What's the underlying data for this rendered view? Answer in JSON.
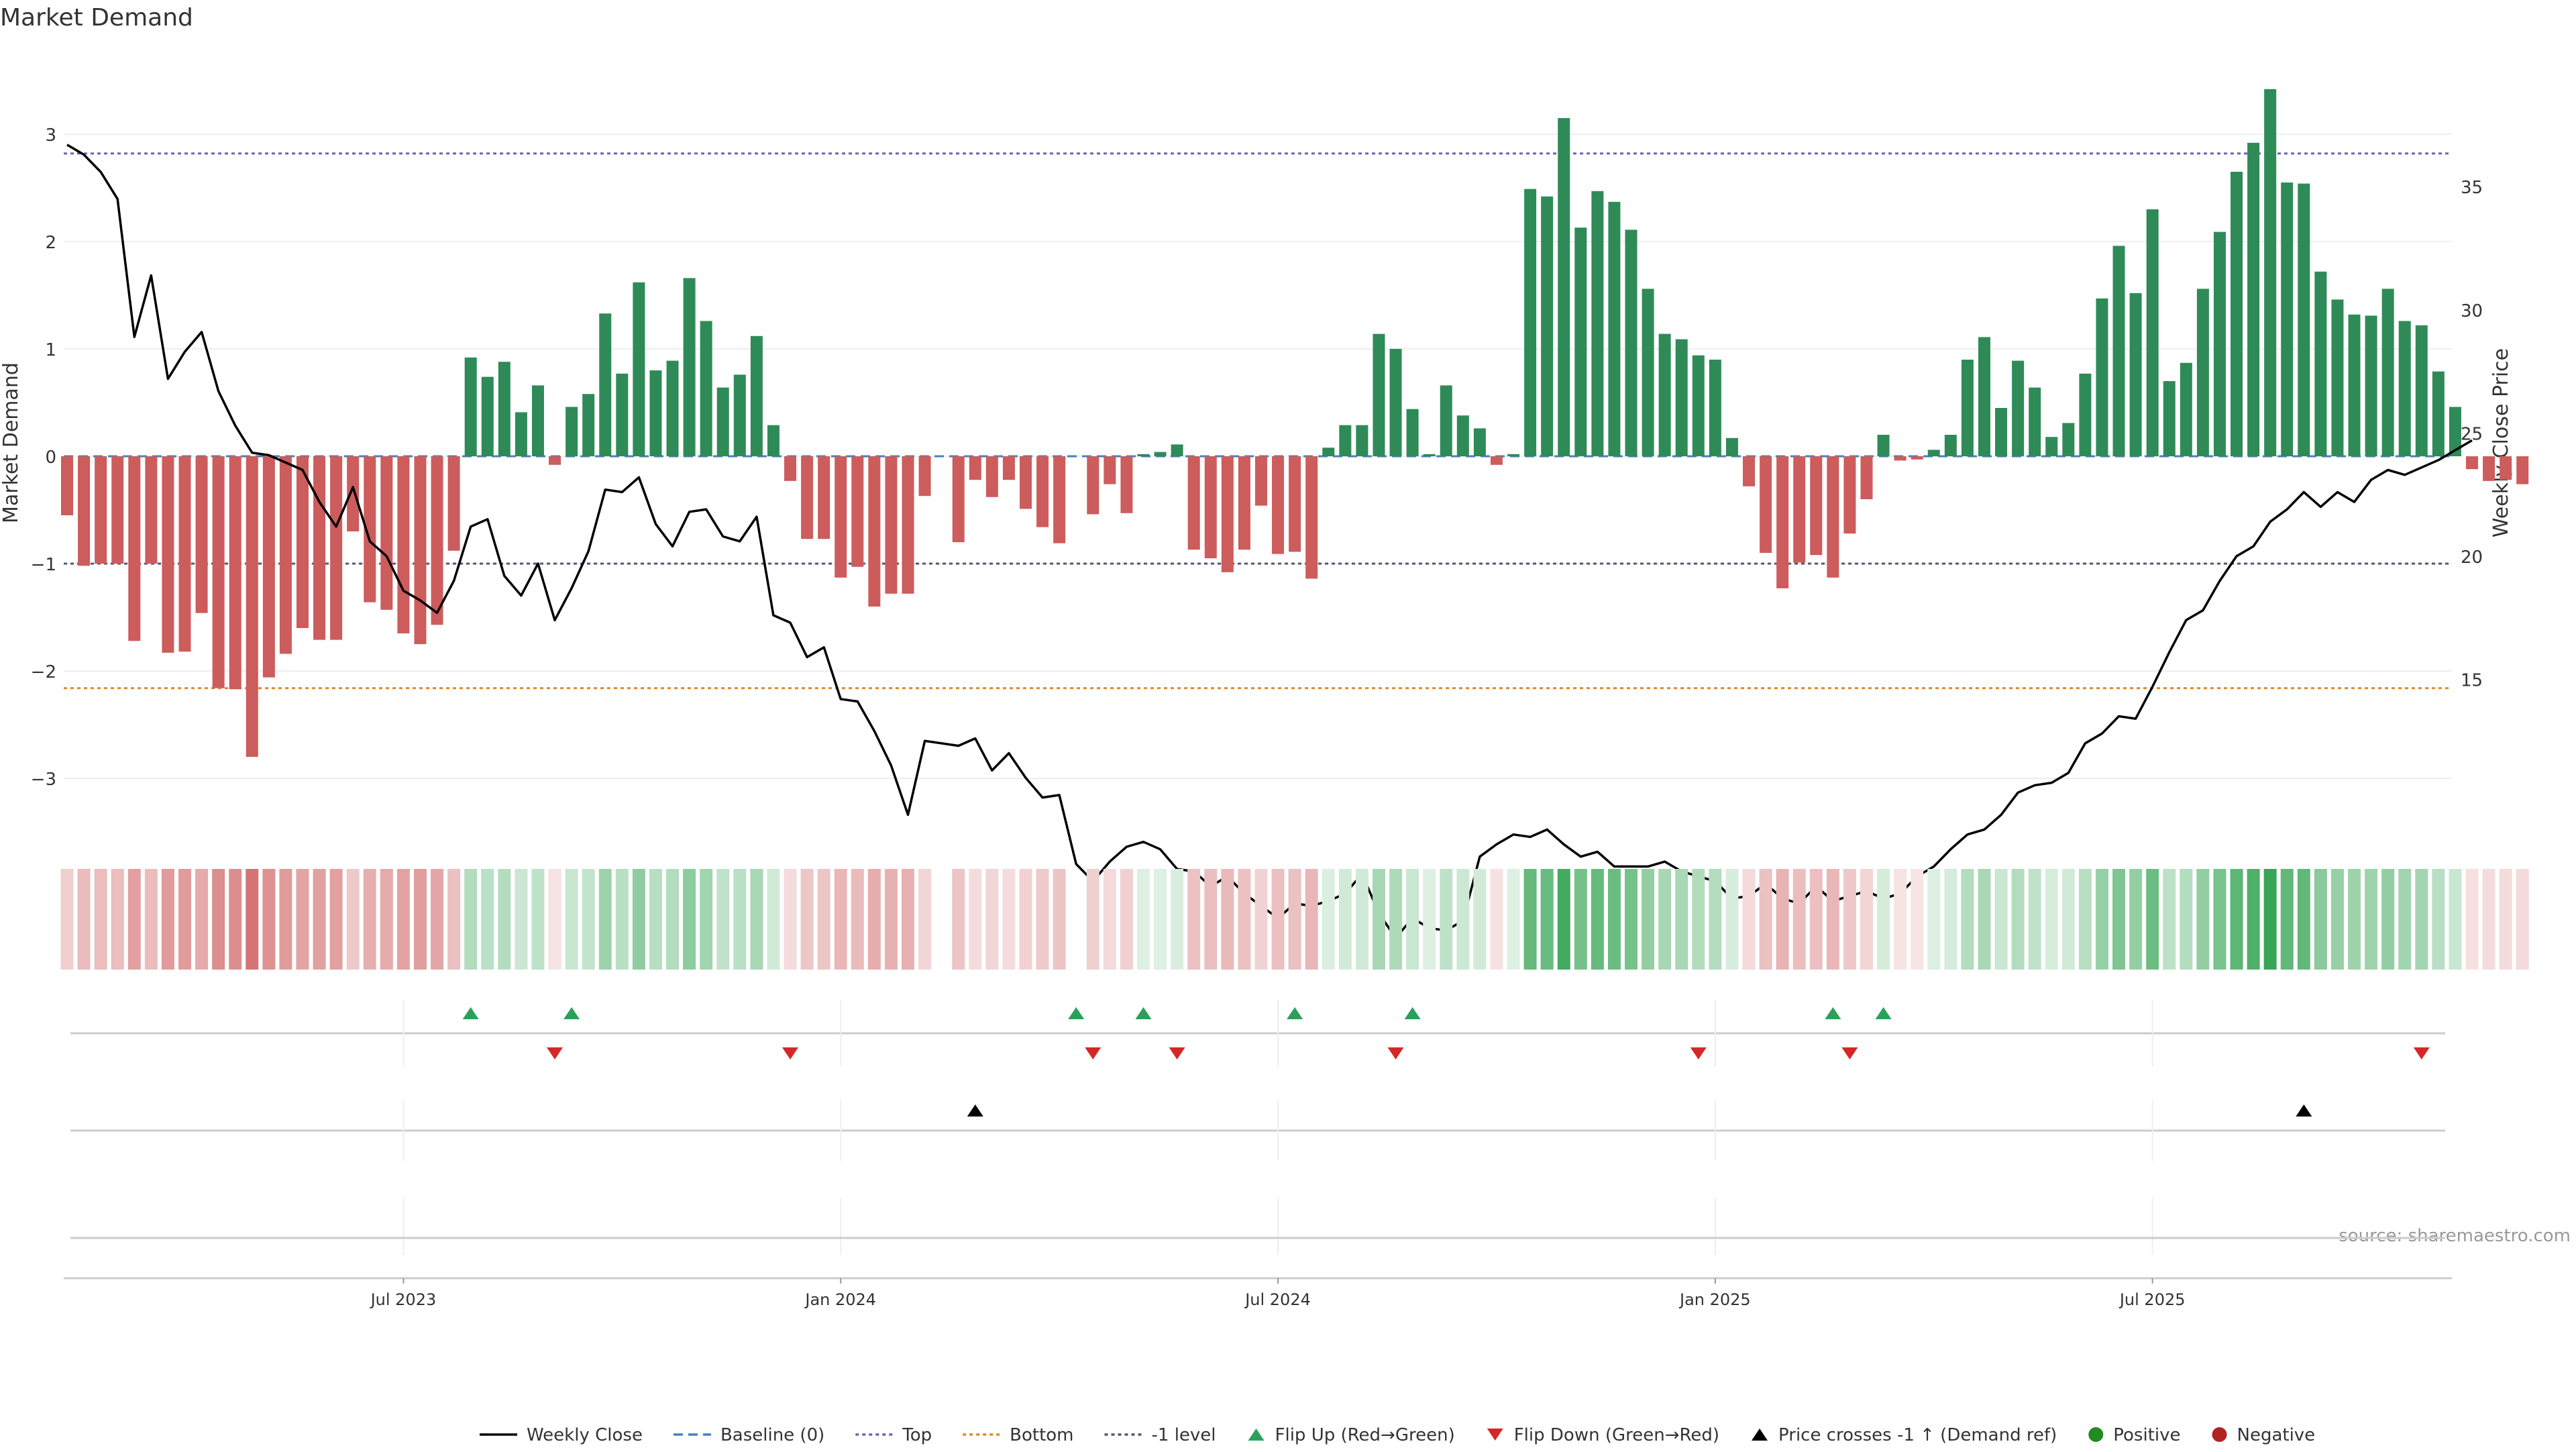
{
  "chart_data": {
    "type": "bar",
    "title": "Market Demand",
    "ylabel_left": "Market Demand",
    "ylabel_right": "Weekly Close Price",
    "source": "source: sharemaestro.com",
    "ylim_left": [
      -3.5,
      3.75
    ],
    "ylim_right": [
      8.8,
      40.4
    ],
    "yticks_left": [
      {
        "value": 3,
        "label": "3"
      },
      {
        "value": 2,
        "label": "2"
      },
      {
        "value": 1,
        "label": "1"
      },
      {
        "value": 0,
        "label": "0"
      },
      {
        "value": -1,
        "label": "−1"
      },
      {
        "value": -2,
        "label": "−2"
      },
      {
        "value": -3,
        "label": "−3"
      }
    ],
    "yticks_right": [
      {
        "value": 35,
        "label": "35"
      },
      {
        "value": 30,
        "label": "30"
      },
      {
        "value": 25,
        "label": "25"
      },
      {
        "value": 20,
        "label": "20"
      },
      {
        "value": 15,
        "label": "15"
      }
    ],
    "xticks": [
      {
        "week": 20,
        "label": "Jul 2023"
      },
      {
        "week": 46,
        "label": "Jan 2024"
      },
      {
        "week": 72,
        "label": "Jul 2024"
      },
      {
        "week": 98,
        "label": "Jan 2025"
      },
      {
        "week": 124,
        "label": "Jul 2025"
      }
    ],
    "reference_lines": {
      "baseline": 0,
      "top": 2.82,
      "bottom": -2.16,
      "minus_one": -1
    },
    "colors": {
      "positive": "#2e8b57",
      "negative": "#cd5c5c",
      "price": "#000000",
      "baseline": "#4a7fc1",
      "top": "#6a63b5",
      "bottom": "#e08a2c",
      "minus_one": "#555577",
      "flip_up": "#2ca05a",
      "flip_down": "#d62728",
      "cross": "#000000",
      "legend_positive": "#228b22",
      "legend_negative": "#b22222"
    },
    "demand": [
      -0.55,
      -1.02,
      -1.0,
      -1.0,
      -1.72,
      -1.0,
      -1.83,
      -1.82,
      -1.46,
      -2.16,
      -2.17,
      -2.8,
      -2.06,
      -1.84,
      -1.6,
      -1.71,
      -1.71,
      -0.7,
      -1.36,
      -1.43,
      -1.65,
      -1.75,
      -1.57,
      -0.88,
      0.92,
      0.74,
      0.88,
      0.41,
      0.66,
      -0.08,
      0.46,
      0.58,
      1.33,
      0.77,
      1.62,
      0.8,
      0.89,
      1.66,
      1.26,
      0.64,
      0.76,
      1.12,
      0.29,
      -0.23,
      -0.77,
      -0.77,
      -1.13,
      -1.03,
      -1.4,
      -1.28,
      -1.28,
      -0.37,
      null,
      -0.8,
      -0.22,
      -0.38,
      -0.22,
      -0.49,
      -0.66,
      -0.81,
      null,
      -0.54,
      -0.26,
      -0.53,
      0.02,
      0.04,
      0.11,
      -0.87,
      -0.95,
      -1.08,
      -0.87,
      -0.46,
      -0.91,
      -0.89,
      -1.14,
      0.08,
      0.29,
      0.29,
      1.14,
      1.0,
      0.44,
      0.02,
      0.66,
      0.38,
      0.26,
      -0.08,
      0.02,
      2.49,
      2.42,
      3.15,
      2.13,
      2.47,
      2.37,
      2.11,
      1.56,
      1.14,
      1.09,
      0.94,
      0.9,
      0.17,
      -0.28,
      -0.9,
      -1.23,
      -0.99,
      -0.92,
      -1.13,
      -0.72,
      -0.4,
      0.2,
      -0.04,
      -0.03,
      0.06,
      0.2,
      0.9,
      1.11,
      0.45,
      0.89,
      0.64,
      0.18,
      0.31,
      0.77,
      1.47,
      1.96,
      1.52,
      2.3,
      0.7,
      0.87,
      1.56,
      2.09,
      2.65,
      2.92,
      3.42,
      2.55,
      2.54,
      1.72,
      1.46,
      1.32,
      1.31,
      1.56,
      1.26,
      1.22,
      0.79,
      0.46,
      -0.12,
      -0.23,
      -0.22,
      -0.26
    ],
    "price": [
      36.7,
      36.3,
      35.6,
      34.5,
      28.9,
      31.4,
      27.2,
      28.3,
      29.1,
      26.7,
      25.3,
      24.2,
      24.1,
      23.8,
      23.5,
      22.2,
      21.2,
      22.8,
      20.6,
      20.0,
      18.6,
      18.2,
      17.7,
      19.0,
      21.2,
      21.5,
      19.2,
      18.4,
      19.7,
      17.4,
      18.7,
      20.2,
      22.7,
      22.6,
      23.2,
      21.3,
      20.4,
      21.8,
      21.9,
      20.8,
      20.6,
      21.6,
      17.6,
      17.3,
      15.9,
      16.3,
      14.2,
      14.1,
      12.9,
      11.5,
      9.5,
      12.5,
      12.4,
      12.3,
      12.6,
      11.3,
      12.0,
      11.0,
      10.2,
      10.3,
      7.5,
      6.8,
      7.6,
      8.2,
      8.4,
      8.1,
      7.3,
      7.2,
      6.6,
      7.0,
      6.3,
      5.8,
      5.3,
      5.9,
      5.8,
      6.0,
      6.3,
      7.1,
      5.5,
      4.5,
      5.3,
      4.9,
      4.8,
      5.2,
      7.8,
      8.3,
      8.7,
      8.6,
      8.9,
      8.3,
      7.8,
      8.0,
      7.4,
      7.4,
      7.4,
      7.6,
      7.2,
      7.0,
      6.8,
      6.1,
      6.2,
      6.7,
      6.1,
      5.9,
      6.6,
      6.0,
      6.2,
      6.4,
      6.1,
      6.3,
      7.0,
      7.4,
      8.1,
      8.7,
      8.9,
      9.5,
      10.4,
      10.7,
      10.8,
      11.2,
      12.4,
      12.8,
      13.5,
      13.4,
      14.7,
      16.1,
      17.4,
      17.8,
      19.0,
      20.0,
      20.4,
      21.4,
      21.9,
      22.6,
      22.0,
      22.6,
      22.2,
      23.1,
      23.5,
      23.3,
      23.6,
      23.9,
      24.3,
      24.7
    ],
    "price_overrides": [],
    "flip_up_weeks": [
      24,
      30,
      60,
      64,
      73,
      80,
      105,
      108
    ],
    "flip_down_weeks": [
      29,
      43,
      61,
      66,
      79,
      97,
      106,
      140
    ],
    "cross_weeks": [
      54,
      133
    ],
    "legend": [
      {
        "key": "price",
        "label": "Weekly Close"
      },
      {
        "key": "baseline",
        "label": "Baseline (0)"
      },
      {
        "key": "top",
        "label": "Top"
      },
      {
        "key": "bottom",
        "label": "Bottom"
      },
      {
        "key": "minus_one",
        "label": "-1 level"
      },
      {
        "key": "flip_up",
        "label": "Flip Up (Red→Green)"
      },
      {
        "key": "flip_down",
        "label": "Flip Down (Green→Red)"
      },
      {
        "key": "cross",
        "label": "Price crosses -1 ↑ (Demand ref)"
      },
      {
        "key": "legend_positive",
        "label": "Positive"
      },
      {
        "key": "legend_negative",
        "label": "Negative"
      }
    ]
  }
}
